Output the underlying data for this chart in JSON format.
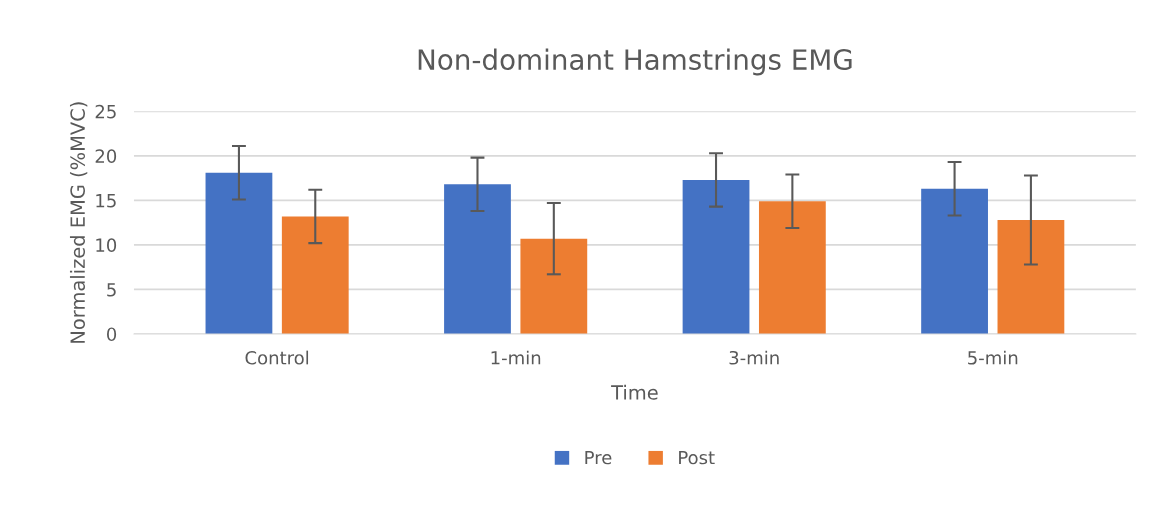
{
  "chart_data": {
    "type": "bar",
    "title": "Non-dominant Hamstrings EMG",
    "xlabel": "Time",
    "ylabel": "Normalized EMG (%MVC)",
    "categories": [
      "Control",
      "1-min",
      "3-min",
      "5-min"
    ],
    "series": [
      {
        "name": "Pre",
        "color": "#4472c4",
        "values": [
          18.1,
          16.8,
          17.3,
          16.3
        ],
        "errors": [
          3.0,
          3.0,
          3.0,
          3.0
        ]
      },
      {
        "name": "Post",
        "color": "#ed7d31",
        "values": [
          13.2,
          10.7,
          14.9,
          12.8
        ],
        "errors": [
          3.0,
          4.0,
          3.0,
          5.0
        ]
      }
    ],
    "ylim": [
      0,
      25
    ],
    "yticks": [
      0,
      5,
      10,
      15,
      20,
      25
    ],
    "grid": "y",
    "legend": "bottom"
  }
}
